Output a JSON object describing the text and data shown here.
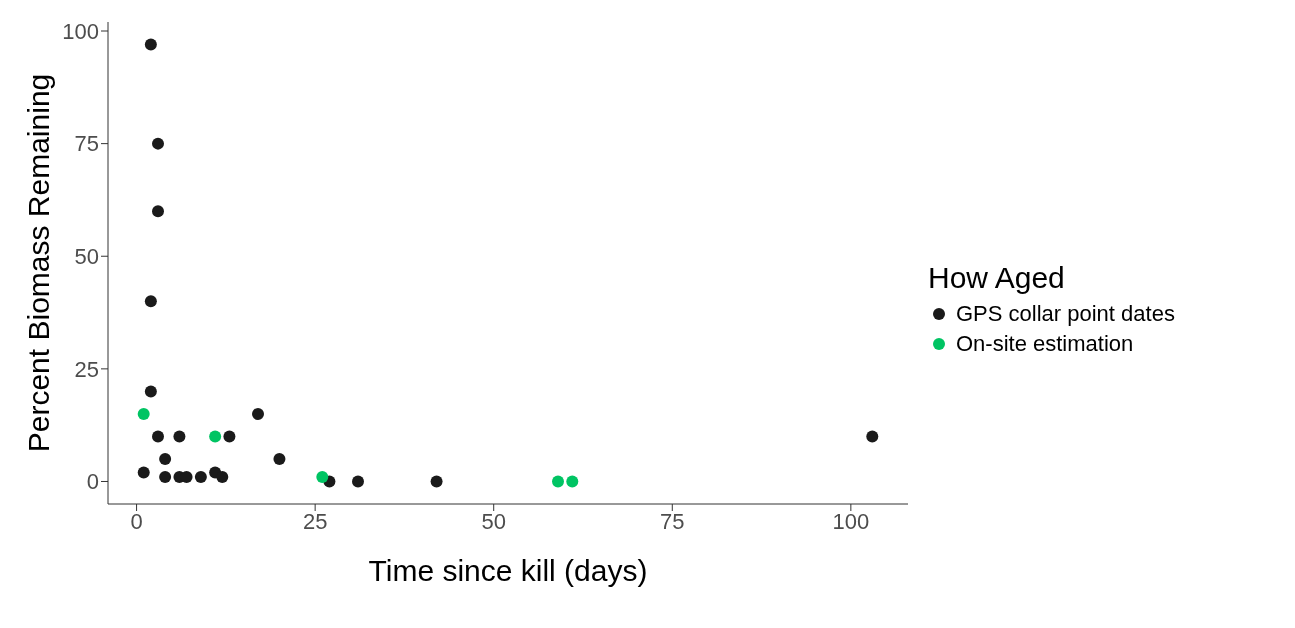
{
  "chart_data": {
    "type": "scatter",
    "xlabel": "Time since kill (days)",
    "ylabel": "Percent Biomass Remaining",
    "legend_title": "How Aged",
    "legend": "right",
    "grid": false,
    "marker": "circle",
    "xlim": [
      -4,
      108
    ],
    "xticks": [
      0,
      25,
      50,
      75,
      100
    ],
    "ylim": [
      -5,
      102
    ],
    "yticks": [
      0,
      25,
      50,
      75,
      100
    ],
    "series": [
      {
        "name": "GPS collar point dates",
        "color": "#1a1a1a",
        "x": [
          2,
          3,
          3,
          2,
          2,
          1,
          3,
          4,
          4,
          6,
          6,
          7,
          9,
          11,
          12,
          13,
          17,
          20,
          27,
          31,
          42,
          103
        ],
        "values": [
          97,
          75,
          60,
          40,
          20,
          2,
          10,
          5,
          1,
          10,
          1,
          1,
          1,
          2,
          1,
          10,
          15,
          5,
          0,
          0,
          0,
          10
        ]
      },
      {
        "name": "On-site estimation",
        "color": "#00c463",
        "x": [
          1,
          11,
          26,
          59,
          61
        ],
        "values": [
          15,
          10,
          1,
          0,
          0
        ]
      }
    ]
  }
}
